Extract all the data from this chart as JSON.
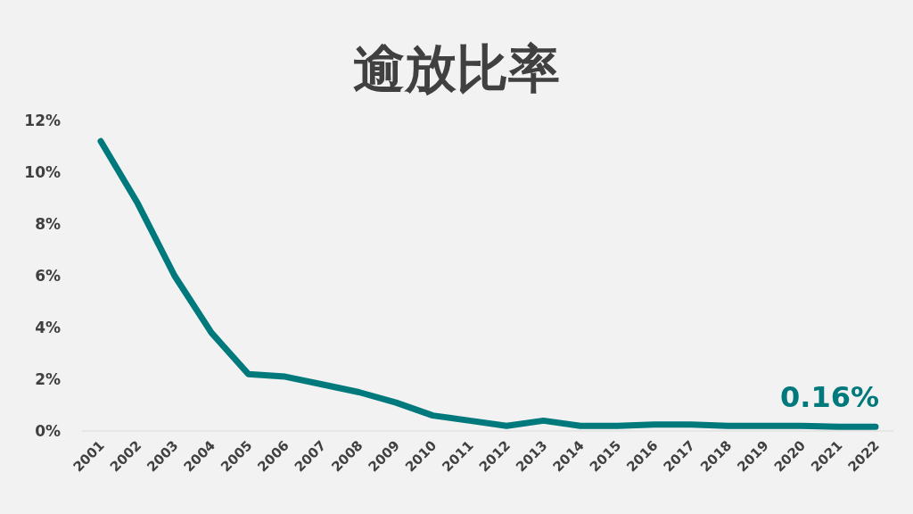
{
  "chart_data": {
    "type": "line",
    "title": "逾放比率",
    "categories": [
      "2001",
      "2002",
      "2003",
      "2004",
      "2005",
      "2006",
      "2007",
      "2008",
      "2009",
      "2010",
      "2011",
      "2012",
      "2013",
      "2014",
      "2015",
      "2016",
      "2017",
      "2018",
      "2019",
      "2020",
      "2021",
      "2022"
    ],
    "series": [
      {
        "color": "#00797c",
        "values": [
          11.2,
          8.8,
          6.0,
          3.8,
          2.2,
          2.1,
          1.8,
          1.5,
          1.1,
          0.6,
          0.4,
          0.2,
          0.4,
          0.2,
          0.2,
          0.25,
          0.25,
          0.2,
          0.2,
          0.2,
          0.16,
          0.16
        ]
      }
    ],
    "ylim": [
      0,
      12
    ],
    "yticks": [
      {
        "value": 0,
        "label": "0%"
      },
      {
        "value": 2,
        "label": "2%"
      },
      {
        "value": 4,
        "label": "4%"
      },
      {
        "value": 6,
        "label": "6%"
      },
      {
        "value": 8,
        "label": "8%"
      },
      {
        "value": 10,
        "label": "10%"
      },
      {
        "value": 12,
        "label": "12%"
      }
    ],
    "annotations": [
      {
        "text": "0.16%",
        "x": "2022",
        "y": 0.16
      }
    ],
    "marker": "none",
    "line_style": "solid",
    "grid": false
  }
}
